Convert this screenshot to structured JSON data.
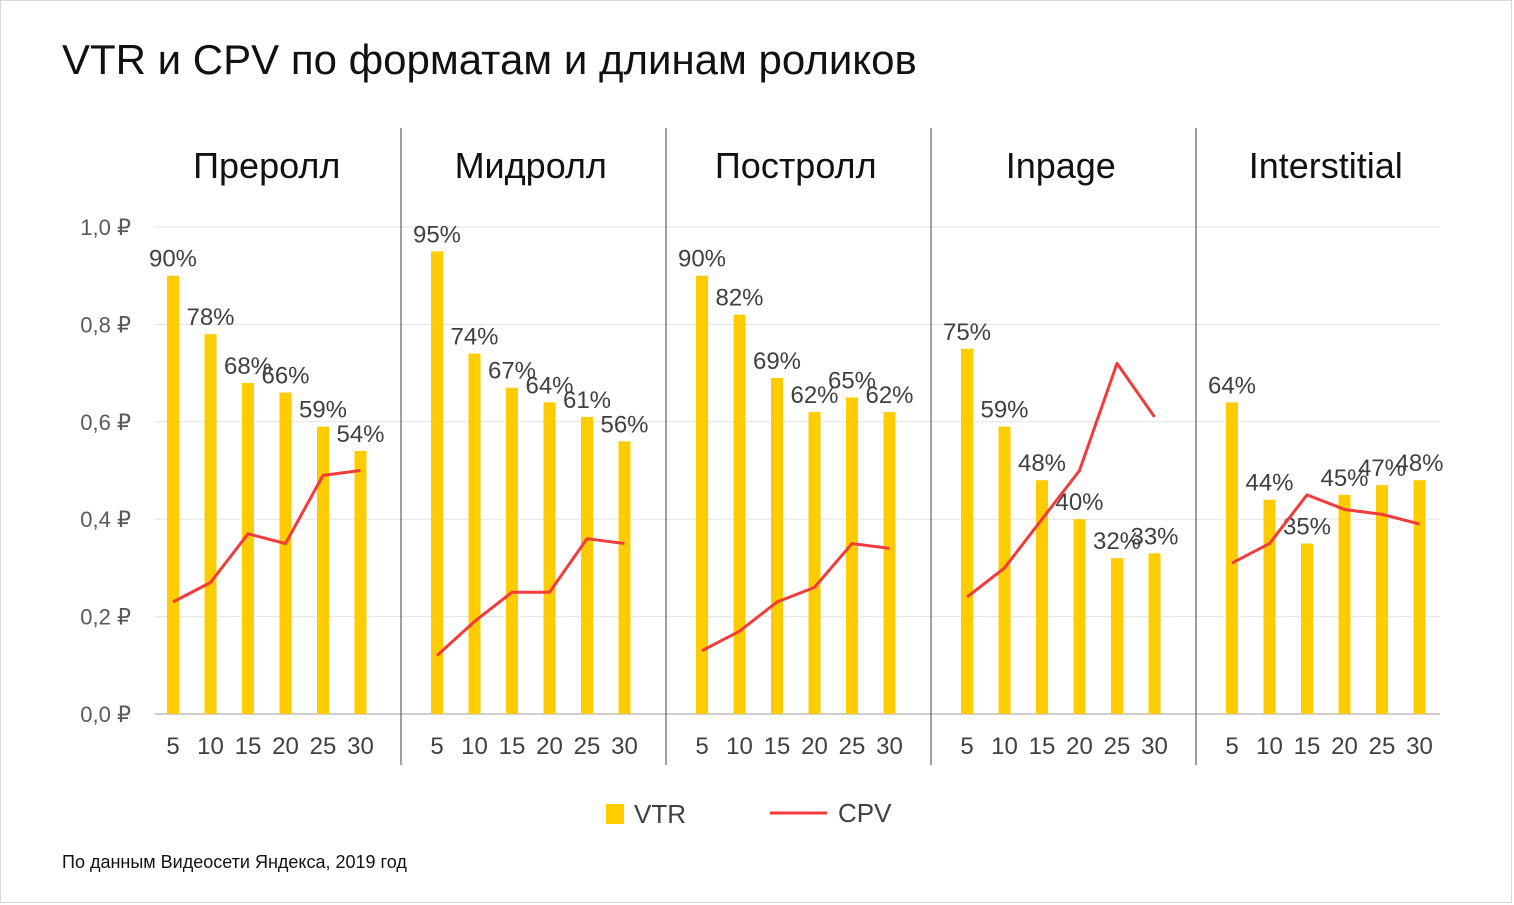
{
  "title": "VTR и CPV по форматам и длинам роликов",
  "source": "По данным Видеосети Яндекса, 2019 год",
  "chart_data": {
    "type": "bar",
    "title": "VTR и CPV по форматам и длинам роликов",
    "ylim": [
      0,
      1.0
    ],
    "y_ticks": [
      "0,0 ₽",
      "0,2 ₽",
      "0,4 ₽",
      "0,6 ₽",
      "0,8 ₽",
      "1,0 ₽"
    ],
    "grid": true,
    "legend_position": "bottom",
    "legend": [
      "VTR",
      "CPV"
    ],
    "colors": {
      "vtr": "#FFCC00",
      "cpv": "#F23B3B"
    },
    "categories": [
      "5",
      "10",
      "15",
      "20",
      "25",
      "30"
    ],
    "panels": [
      {
        "name": "Преролл",
        "vtr": [
          0.9,
          0.78,
          0.68,
          0.66,
          0.59,
          0.54
        ],
        "vtr_labels": [
          "90%",
          "78%",
          "68%",
          "66%",
          "59%",
          "54%"
        ],
        "cpv": [
          0.23,
          0.27,
          0.37,
          0.35,
          0.49,
          0.5
        ]
      },
      {
        "name": "Мидролл",
        "vtr": [
          0.95,
          0.74,
          0.67,
          0.64,
          0.61,
          0.56
        ],
        "vtr_labels": [
          "95%",
          "74%",
          "67%",
          "64%",
          "61%",
          "56%"
        ],
        "cpv": [
          0.12,
          0.19,
          0.25,
          0.25,
          0.36,
          0.35
        ]
      },
      {
        "name": "Постролл",
        "vtr": [
          0.9,
          0.82,
          0.69,
          0.62,
          0.65,
          0.62
        ],
        "vtr_labels": [
          "90%",
          "82%",
          "69%",
          "62%",
          "65%",
          "62%"
        ],
        "cpv": [
          0.13,
          0.17,
          0.23,
          0.26,
          0.35,
          0.34
        ]
      },
      {
        "name": "Inpage",
        "vtr": [
          0.75,
          0.59,
          0.48,
          0.4,
          0.32,
          0.33
        ],
        "vtr_labels": [
          "75%",
          "59%",
          "48%",
          "40%",
          "32%",
          "33%"
        ],
        "cpv": [
          0.24,
          0.3,
          0.4,
          0.5,
          0.72,
          0.61
        ]
      },
      {
        "name": "Interstitial",
        "vtr": [
          0.64,
          0.44,
          0.35,
          0.45,
          0.47,
          0.48
        ],
        "vtr_labels": [
          "64%",
          "44%",
          "35%",
          "45%",
          "47%",
          "48%"
        ],
        "cpv": [
          0.31,
          0.35,
          0.45,
          0.42,
          0.41,
          0.39
        ]
      }
    ]
  }
}
